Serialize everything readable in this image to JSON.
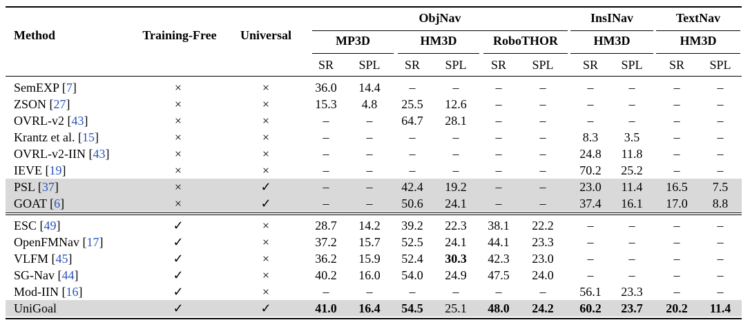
{
  "header": {
    "method": "Method",
    "training_free": "Training-Free",
    "universal": "Universal",
    "groups": [
      {
        "label": "ObjNav",
        "datasets": [
          "MP3D",
          "HM3D",
          "RoboTHOR"
        ]
      },
      {
        "label": "InsINav",
        "datasets": [
          "HM3D"
        ]
      },
      {
        "label": "TextNav",
        "datasets": [
          "HM3D"
        ]
      }
    ],
    "metrics": [
      "SR",
      "SPL"
    ]
  },
  "rows": [
    {
      "name": "SemEXP",
      "ref": "7",
      "tf": "×",
      "uni": "×",
      "vals": [
        "36.0",
        "14.4",
        "–",
        "–",
        "–",
        "–",
        "–",
        "–",
        "–",
        "–"
      ],
      "bold": []
    },
    {
      "name": "ZSON",
      "ref": "27",
      "tf": "×",
      "uni": "×",
      "vals": [
        "15.3",
        "4.8",
        "25.5",
        "12.6",
        "–",
        "–",
        "–",
        "–",
        "–",
        "–"
      ],
      "bold": []
    },
    {
      "name": "OVRL-v2",
      "ref": "43",
      "tf": "×",
      "uni": "×",
      "vals": [
        "–",
        "–",
        "64.7",
        "28.1",
        "–",
        "–",
        "–",
        "–",
        "–",
        "–"
      ],
      "bold": []
    },
    {
      "name": "Krantz et al.",
      "ref": "15",
      "tf": "×",
      "uni": "×",
      "vals": [
        "–",
        "–",
        "–",
        "–",
        "–",
        "–",
        "8.3",
        "3.5",
        "–",
        "–"
      ],
      "bold": []
    },
    {
      "name": "OVRL-v2-IIN",
      "ref": "43",
      "tf": "×",
      "uni": "×",
      "vals": [
        "–",
        "–",
        "–",
        "–",
        "–",
        "–",
        "24.8",
        "11.8",
        "–",
        "–"
      ],
      "bold": []
    },
    {
      "name": "IEVE",
      "ref": "19",
      "tf": "×",
      "uni": "×",
      "vals": [
        "–",
        "–",
        "–",
        "–",
        "–",
        "–",
        "70.2",
        "25.2",
        "–",
        "–"
      ],
      "bold": []
    },
    {
      "name": "PSL",
      "ref": "37",
      "tf": "×",
      "uni": "✓",
      "vals": [
        "–",
        "–",
        "42.4",
        "19.2",
        "–",
        "–",
        "23.0",
        "11.4",
        "16.5",
        "7.5"
      ],
      "bold": [],
      "highlight": true
    },
    {
      "name": "GOAT",
      "ref": "6",
      "tf": "×",
      "uni": "✓",
      "vals": [
        "–",
        "–",
        "50.6",
        "24.1",
        "–",
        "–",
        "37.4",
        "16.1",
        "17.0",
        "8.8"
      ],
      "bold": [],
      "highlight": true
    },
    {
      "name": "ESC",
      "ref": "49",
      "tf": "✓",
      "uni": "×",
      "vals": [
        "28.7",
        "14.2",
        "39.2",
        "22.3",
        "38.1",
        "22.2",
        "–",
        "–",
        "–",
        "–"
      ],
      "bold": []
    },
    {
      "name": "OpenFMNav",
      "ref": "17",
      "tf": "✓",
      "uni": "×",
      "vals": [
        "37.2",
        "15.7",
        "52.5",
        "24.1",
        "44.1",
        "23.3",
        "–",
        "–",
        "–",
        "–"
      ],
      "bold": []
    },
    {
      "name": "VLFM",
      "ref": "45",
      "tf": "✓",
      "uni": "×",
      "vals": [
        "36.2",
        "15.9",
        "52.4",
        "30.3",
        "42.3",
        "23.0",
        "–",
        "–",
        "–",
        "–"
      ],
      "bold": [
        3
      ]
    },
    {
      "name": "SG-Nav",
      "ref": "44",
      "tf": "✓",
      "uni": "×",
      "vals": [
        "40.2",
        "16.0",
        "54.0",
        "24.9",
        "47.5",
        "24.0",
        "–",
        "–",
        "–",
        "–"
      ],
      "bold": []
    },
    {
      "name": "Mod-IIN",
      "ref": "16",
      "tf": "✓",
      "uni": "×",
      "vals": [
        "–",
        "–",
        "–",
        "–",
        "–",
        "–",
        "56.1",
        "23.3",
        "–",
        "–"
      ],
      "bold": []
    },
    {
      "name": "UniGoal",
      "ref": "",
      "tf": "✓",
      "uni": "✓",
      "vals": [
        "41.0",
        "16.4",
        "54.5",
        "25.1",
        "48.0",
        "24.2",
        "60.2",
        "23.7",
        "20.2",
        "11.4"
      ],
      "bold": [
        0,
        1,
        2,
        4,
        5,
        6,
        7,
        8,
        9
      ],
      "highlight": true
    }
  ]
}
